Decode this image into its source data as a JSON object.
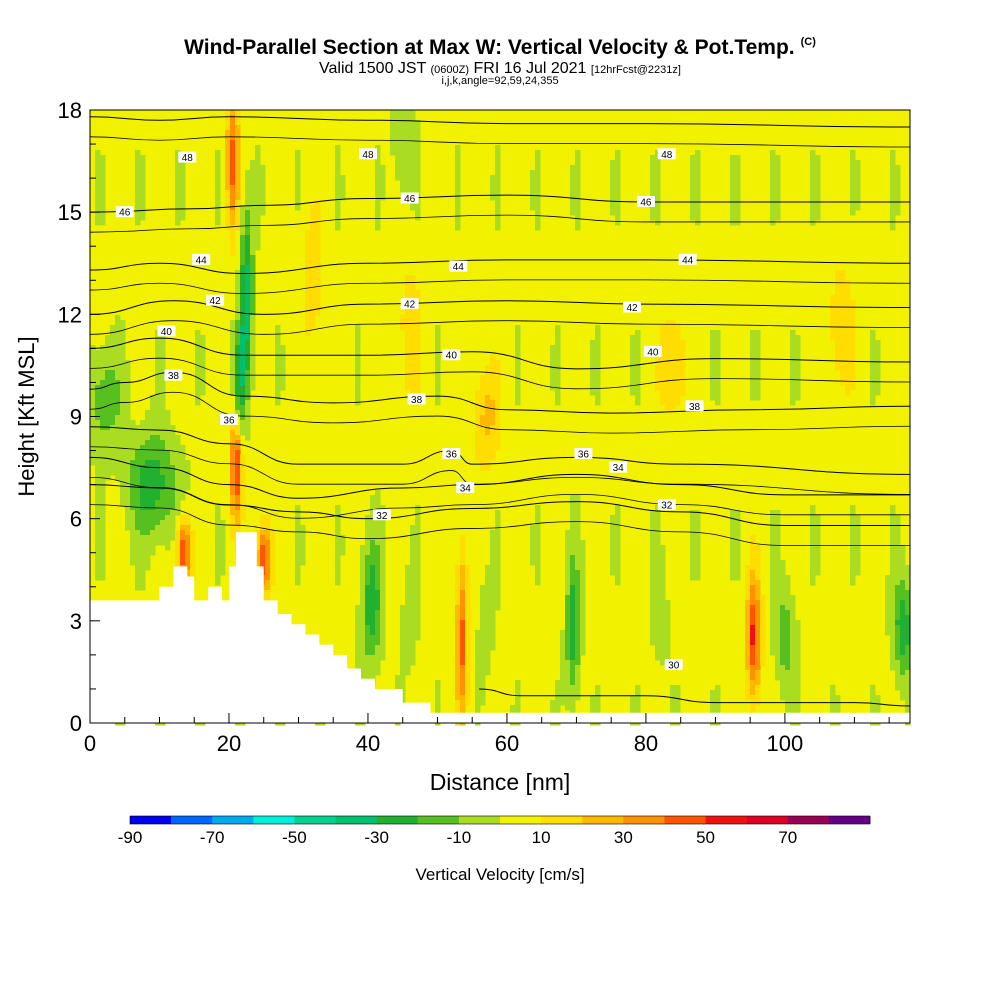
{
  "titles": {
    "main": "Wind-Parallel Section at Max W: Vertical Velocity & Pot.Temp.",
    "copyright": "(C)",
    "valid_prefix": "Valid 1500 JST",
    "valid_utc": "(0600Z)",
    "valid_date": "FRI 16 Jul 2021",
    "valid_fcst": "[12hrFcst@2231z]",
    "indices": "i,j,k,angle=92,59,24,355"
  },
  "chart_data": {
    "type": "heatmap",
    "xlabel": "Distance [nm]",
    "ylabel": "Height [Kft MSL]",
    "xlim": [
      0,
      118
    ],
    "ylim": [
      0,
      18
    ],
    "x_ticks": [
      "0",
      "20",
      "40",
      "60",
      "80",
      "100"
    ],
    "y_ticks": [
      "0",
      "3",
      "6",
      "9",
      "12",
      "15",
      "18"
    ],
    "colorbar": {
      "label": "Vertical Velocity [cm/s]",
      "tick_labels": [
        "-90",
        "-70",
        "-50",
        "-30",
        "-10",
        "10",
        "30",
        "50",
        "70"
      ],
      "levels": [
        -90,
        -80,
        -70,
        -60,
        -50,
        -40,
        -30,
        -20,
        -10,
        0,
        10,
        20,
        30,
        40,
        50,
        60,
        70,
        80
      ],
      "colors": [
        "#0000ee",
        "#0066ff",
        "#00aaee",
        "#00eedd",
        "#00d090",
        "#00c070",
        "#22b030",
        "#55c020",
        "#aadd22",
        "#f2f200",
        "#ffdd00",
        "#ffb800",
        "#ff9000",
        "#ff5500",
        "#ee1111",
        "#dd0022",
        "#990055",
        "#660088"
      ]
    },
    "background_color": "#f2f200",
    "terrain_color": "#ffffff",
    "contour_color": "#000000",
    "terrain_profile": [
      [
        0,
        3.6
      ],
      [
        2,
        3.6
      ],
      [
        4,
        3.6
      ],
      [
        6,
        3.6
      ],
      [
        8,
        3.6
      ],
      [
        10,
        4.0
      ],
      [
        12,
        4.6
      ],
      [
        14,
        4.3
      ],
      [
        15,
        3.6
      ],
      [
        17,
        4.0
      ],
      [
        19,
        3.6
      ],
      [
        20,
        4.6
      ],
      [
        21,
        5.6
      ],
      [
        23,
        5.6
      ],
      [
        24,
        4.6
      ],
      [
        25,
        3.6
      ],
      [
        27,
        3.2
      ],
      [
        29,
        2.9
      ],
      [
        31,
        2.6
      ],
      [
        33,
        2.3
      ],
      [
        35,
        2.0
      ],
      [
        37,
        1.6
      ],
      [
        39,
        1.3
      ],
      [
        41,
        1.0
      ],
      [
        43,
        1.0
      ],
      [
        45,
        0.6
      ],
      [
        47,
        0.6
      ],
      [
        49,
        0.3
      ],
      [
        51,
        0.3
      ],
      [
        53,
        0.3
      ],
      [
        118,
        0.3
      ]
    ],
    "w_features": [
      {
        "x": 21,
        "y": 7.5,
        "dx": 0.8,
        "dy": 1.5,
        "w": 50
      },
      {
        "x": 20.5,
        "y": 16.5,
        "dx": 0.9,
        "dy": 2.0,
        "w": 40
      },
      {
        "x": 22.5,
        "y": 12.5,
        "dx": 0.9,
        "dy": 2.5,
        "w": -40
      },
      {
        "x": 21.5,
        "y": 10.0,
        "dx": 0.8,
        "dy": 1.5,
        "w": -30
      },
      {
        "x": 13.5,
        "y": 5.0,
        "dx": 1.0,
        "dy": 1.0,
        "w": 50
      },
      {
        "x": 25,
        "y": 4.8,
        "dx": 1.0,
        "dy": 1.0,
        "w": 50
      },
      {
        "x": 9,
        "y": 7.0,
        "dx": 3.5,
        "dy": 1.5,
        "w": -30
      },
      {
        "x": 2,
        "y": 9.5,
        "dx": 2.5,
        "dy": 1.5,
        "w": -20
      },
      {
        "x": 40.5,
        "y": 3.5,
        "dx": 1.5,
        "dy": 1.8,
        "w": -30
      },
      {
        "x": 53.5,
        "y": 2.5,
        "dx": 0.8,
        "dy": 2.5,
        "w": 40
      },
      {
        "x": 69.5,
        "y": 2.8,
        "dx": 1.0,
        "dy": 2.0,
        "w": -30
      },
      {
        "x": 95.5,
        "y": 2.5,
        "dx": 1.0,
        "dy": 1.8,
        "w": 50
      },
      {
        "x": 100,
        "y": 2.5,
        "dx": 1.5,
        "dy": 1.5,
        "w": -20
      },
      {
        "x": 117,
        "y": 2.8,
        "dx": 1.5,
        "dy": 1.5,
        "w": -30
      },
      {
        "x": 46,
        "y": 3.0,
        "dx": 1.2,
        "dy": 1.5,
        "w": -10
      },
      {
        "x": 57,
        "y": 3.0,
        "dx": 1.2,
        "dy": 1.5,
        "w": -10
      },
      {
        "x": 82,
        "y": 3.0,
        "dx": 1.2,
        "dy": 1.5,
        "w": -10
      },
      {
        "x": 45,
        "y": 17.0,
        "dx": 1.5,
        "dy": 1.5,
        "w": -15
      },
      {
        "x": 46,
        "y": 11.5,
        "dx": 1.5,
        "dy": 2.0,
        "w": 15
      },
      {
        "x": 57,
        "y": 9.0,
        "dx": 2.0,
        "dy": 1.5,
        "w": 20
      },
      {
        "x": 84,
        "y": 10.5,
        "dx": 2.0,
        "dy": 2.0,
        "w": 15
      },
      {
        "x": 108,
        "y": 11.5,
        "dx": 2.0,
        "dy": 2.0,
        "w": 15
      },
      {
        "x": 32,
        "y": 13.0,
        "dx": 1.5,
        "dy": 2.0,
        "w": 15
      }
    ],
    "contours": [
      {
        "value": "48",
        "points": [
          [
            0,
            17.8
          ],
          [
            10,
            17.7
          ],
          [
            20,
            17.8
          ],
          [
            40,
            17.7
          ],
          [
            60,
            17.6
          ],
          [
            80,
            17.6
          ],
          [
            118,
            17.5
          ]
        ],
        "labels": [
          [
            14,
            16.6
          ],
          [
            40,
            16.7
          ],
          [
            83,
            16.7
          ]
        ]
      },
      {
        "value": "46",
        "points": [
          [
            0,
            15.0
          ],
          [
            15,
            15.1
          ],
          [
            25,
            15.2
          ],
          [
            40,
            15.4
          ],
          [
            60,
            15.5
          ],
          [
            80,
            15.3
          ],
          [
            118,
            15.3
          ]
        ],
        "labels": [
          [
            5,
            15.0
          ],
          [
            46,
            15.4
          ],
          [
            80,
            15.3
          ]
        ]
      },
      {
        "value": "44",
        "points": [
          [
            0,
            13.3
          ],
          [
            10,
            13.5
          ],
          [
            22,
            13.2
          ],
          [
            40,
            13.5
          ],
          [
            60,
            13.6
          ],
          [
            80,
            13.6
          ],
          [
            118,
            13.5
          ]
        ],
        "labels": [
          [
            16,
            13.6
          ],
          [
            53,
            13.4
          ],
          [
            86,
            13.6
          ]
        ]
      },
      {
        "value": "42",
        "points": [
          [
            0,
            12.0
          ],
          [
            12,
            12.4
          ],
          [
            25,
            12.0
          ],
          [
            40,
            12.3
          ],
          [
            60,
            12.4
          ],
          [
            80,
            12.3
          ],
          [
            118,
            12.2
          ]
        ],
        "labels": [
          [
            18,
            12.4
          ],
          [
            46,
            12.3
          ],
          [
            78,
            12.2
          ]
        ]
      },
      {
        "value": "40",
        "points": [
          [
            0,
            11.0
          ],
          [
            10,
            11.3
          ],
          [
            22,
            10.8
          ],
          [
            40,
            10.8
          ],
          [
            55,
            10.9
          ],
          [
            70,
            10.4
          ],
          [
            90,
            10.7
          ],
          [
            118,
            10.6
          ]
        ],
        "labels": [
          [
            11,
            11.5
          ],
          [
            52,
            10.8
          ],
          [
            81,
            10.9
          ]
        ]
      },
      {
        "value": "38",
        "points": [
          [
            0,
            9.8
          ],
          [
            5,
            10.0
          ],
          [
            12,
            10.3
          ],
          [
            22,
            9.6
          ],
          [
            35,
            9.4
          ],
          [
            50,
            9.6
          ],
          [
            60,
            9.2
          ],
          [
            75,
            9.1
          ],
          [
            95,
            9.2
          ],
          [
            118,
            9.3
          ]
        ],
        "labels": [
          [
            12,
            10.2
          ],
          [
            47,
            9.5
          ],
          [
            87,
            9.3
          ]
        ]
      },
      {
        "value": "36",
        "points": [
          [
            0,
            8.7
          ],
          [
            10,
            8.6
          ],
          [
            20,
            8.2
          ],
          [
            30,
            7.6
          ],
          [
            45,
            7.6
          ],
          [
            52,
            8.0
          ],
          [
            55,
            7.6
          ],
          [
            70,
            7.8
          ],
          [
            85,
            7.6
          ],
          [
            118,
            7.3
          ]
        ],
        "labels": [
          [
            20,
            8.9
          ],
          [
            52,
            7.9
          ],
          [
            71,
            7.9
          ]
        ]
      },
      {
        "value": "34",
        "points": [
          [
            0,
            7.8
          ],
          [
            10,
            7.5
          ],
          [
            20,
            7.0
          ],
          [
            30,
            6.6
          ],
          [
            45,
            6.9
          ],
          [
            55,
            7.0
          ],
          [
            70,
            7.3
          ],
          [
            85,
            7.0
          ],
          [
            100,
            6.7
          ],
          [
            118,
            6.7
          ]
        ],
        "labels": [
          [
            54,
            6.9
          ],
          [
            76,
            7.5
          ]
        ]
      },
      {
        "value": "32",
        "points": [
          [
            0,
            7.0
          ],
          [
            10,
            6.9
          ],
          [
            20,
            6.4
          ],
          [
            30,
            6.2
          ],
          [
            40,
            6.0
          ],
          [
            55,
            6.3
          ],
          [
            70,
            6.5
          ],
          [
            85,
            6.2
          ],
          [
            100,
            5.8
          ],
          [
            118,
            5.8
          ]
        ],
        "labels": [
          [
            42,
            6.1
          ],
          [
            83,
            6.4
          ]
        ]
      },
      {
        "value": "30",
        "points": [
          [
            56,
            1.0
          ],
          [
            62,
            0.8
          ],
          [
            70,
            0.8
          ],
          [
            80,
            0.8
          ],
          [
            90,
            0.6
          ],
          [
            110,
            0.6
          ],
          [
            118,
            0.5
          ]
        ],
        "labels": [
          [
            84,
            1.7
          ]
        ]
      }
    ]
  }
}
